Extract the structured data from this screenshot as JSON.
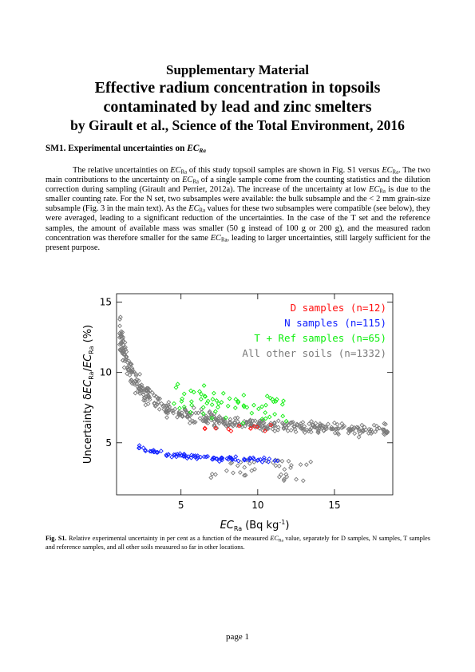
{
  "header": {
    "line1": "Supplementary Material",
    "line2": "Effective radium concentration in topsoils",
    "line3": "contaminated by lead and zinc smelters",
    "line4": "by Girault et al., Science of the Total Environment, 2016"
  },
  "section": {
    "prefix": "SM1. Experimental uncertainties on ",
    "var": "EC",
    "sub": "Ra"
  },
  "body": {
    "t1": "The relative uncertainties on ",
    "t2": " of this study topsoil samples are shown in Fig. S1 versus ",
    "t3": ". The two main contributions to the uncertainty on ",
    "t4": " of a single sample come from the counting statistics and the dilution correction during sampling (Girault and Perrier, 2012a). The increase of the uncertainty at low ",
    "t5": " is due to the smaller counting rate. For the N set, two subsamples were available: the bulk subsample and the < 2 mm grain-size subsample (Fig. 3 in the main text). As the ",
    "t6": " values for these two subsamples were compatible (see below), they were averaged, leading to a significant reduction of the uncertainties. In the case of the T set and the reference samples, the amount of available mass was smaller (50 g instead of 100 g or 200 g), and the measured radon concentration was therefore smaller for the same ",
    "t7": ", leading to larger uncertainties, still largely sufficient for the present purpose.",
    "var": "EC",
    "sub": "Ra"
  },
  "chart_data": {
    "type": "scatter",
    "xlabel_var": "EC",
    "xlabel_sub": "Ra",
    "xlabel_unit": "(Bq kg",
    "xlabel_exp": "-1",
    "xlabel_close": ")",
    "ylabel_prefix": "Uncertainty δ",
    "ylabel_var": "EC",
    "ylabel_sub": "Ra",
    "ylabel_mid": "/",
    "ylabel_var2": "EC",
    "ylabel_sub2": "Ra",
    "ylabel_unit": " (%)",
    "xlim": [
      0.8,
      18.8
    ],
    "ylim": [
      1.3,
      15.6
    ],
    "xticks": [
      5,
      10,
      15
    ],
    "yticks": [
      5,
      10,
      15
    ],
    "legend_position": "top-right",
    "series": [
      {
        "name": "D samples (n=12)",
        "color": "#ff1010",
        "count": 12
      },
      {
        "name": "N samples (n=115)",
        "color": "#1020ff",
        "count": 115
      },
      {
        "name": "T + Ref samples (n=65)",
        "color": "#10ee10",
        "count": 65
      },
      {
        "name": "All other soils (n=1332)",
        "color": "#7a7a7a",
        "count": 1332
      }
    ]
  },
  "caption": {
    "label": "Fig. S1.",
    "t1": " Relative experimental uncertainty in per cent as a function of the measured ",
    "var": "EC",
    "sub": "Ra",
    "t2": " value, separately for D samples, N samples, T samples and reference samples, and all other soils measured so far in other locations."
  },
  "footer": {
    "page": "page 1"
  }
}
